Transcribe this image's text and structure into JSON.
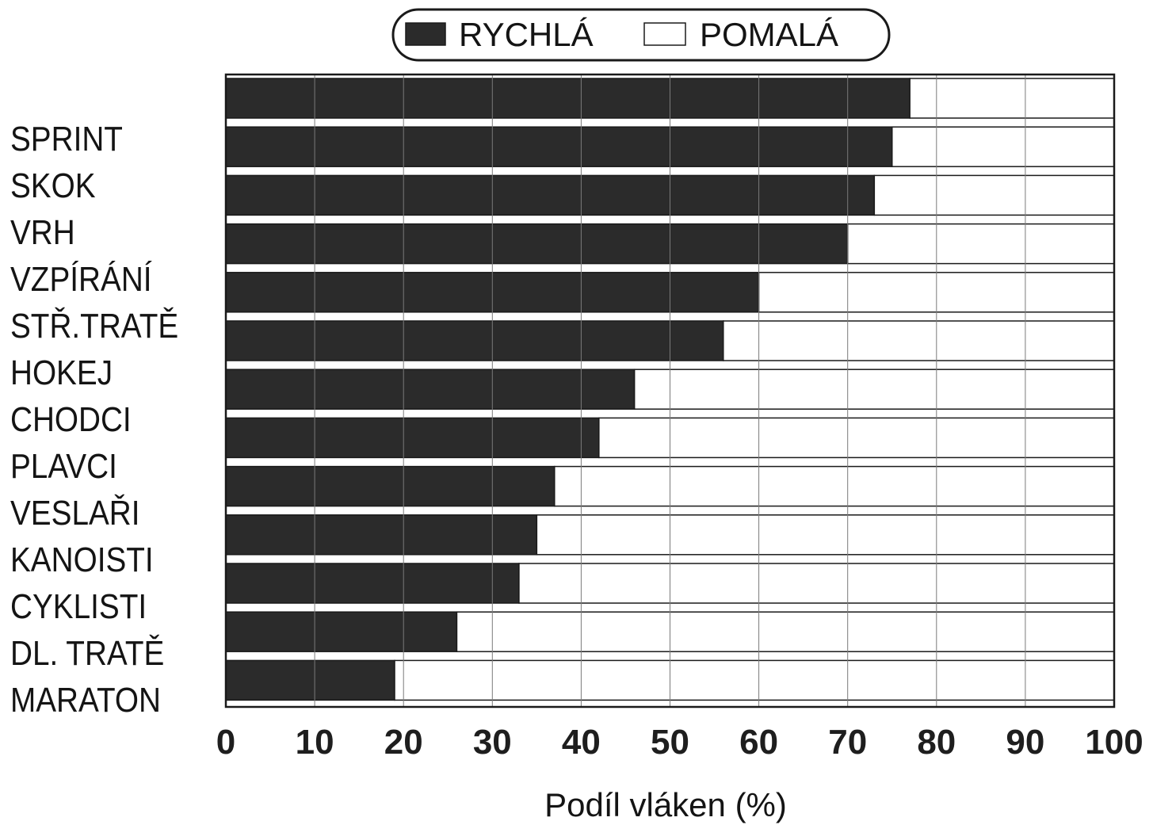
{
  "chart_data": {
    "type": "bar",
    "orientation": "horizontal",
    "stacked": true,
    "categories": [
      "SPRINT",
      "SKOK",
      "VRH",
      "VZPÍRÁNÍ",
      "STŘ.TRATĚ",
      "HOKEJ",
      "CHODCI",
      "PLAVCI",
      "VESLAŘI",
      "KANOISTI",
      "CYKLISTI",
      "DL. TRATĚ",
      "MARATON"
    ],
    "series": [
      {
        "name": "RYCHLÁ",
        "color": "#2b2b2b",
        "values": [
          77,
          75,
          73,
          70,
          60,
          56,
          46,
          42,
          37,
          35,
          33,
          26,
          19
        ]
      },
      {
        "name": "POMALÁ",
        "color": "#ffffff",
        "values": [
          23,
          25,
          27,
          30,
          40,
          44,
          54,
          58,
          63,
          65,
          67,
          74,
          81
        ]
      }
    ],
    "xlabel": "Podíl vláken (%)",
    "ylabel": "",
    "xlim": [
      0,
      100
    ],
    "xticks": [
      "0",
      "10",
      "20",
      "30",
      "40",
      "50",
      "60",
      "70",
      "80",
      "90",
      "100"
    ],
    "grid": "vertical",
    "legend_position": "top-center"
  }
}
